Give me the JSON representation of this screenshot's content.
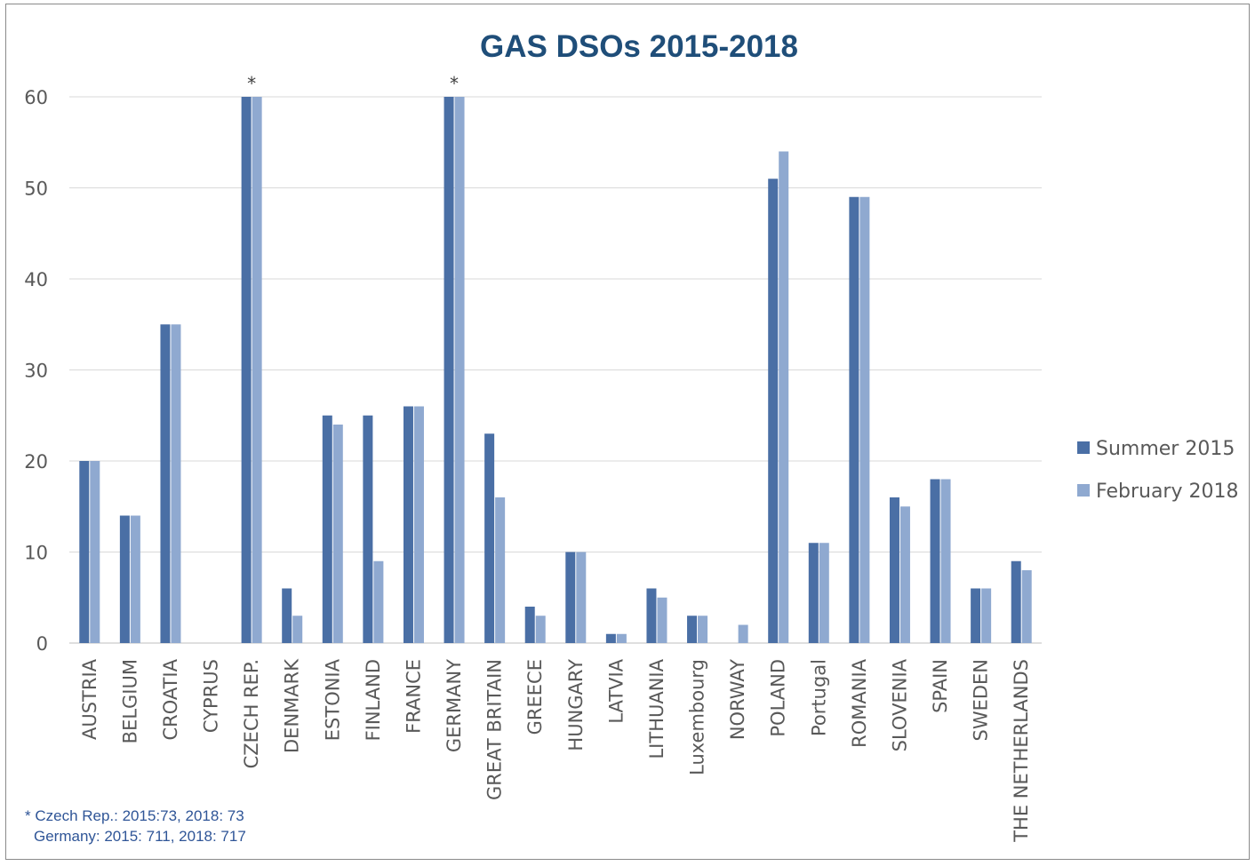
{
  "chart_data": {
    "type": "bar",
    "title": "GAS DSOs 2015-2018",
    "xlabel": "",
    "ylabel": "",
    "ylim": [
      0,
      60
    ],
    "yticks": [
      0,
      10,
      20,
      30,
      40,
      50,
      60
    ],
    "grid": true,
    "legend_position": "right",
    "categories": [
      "AUSTRIA",
      "BELGIUM",
      "CROATIA",
      "CYPRUS",
      "CZECH REP.",
      "DENMARK",
      "ESTONIA",
      "FINLAND",
      "FRANCE",
      "GERMANY",
      "GREAT BRITAIN",
      "GREECE",
      "HUNGARY",
      "LATVIA",
      "LITHUANIA",
      "Luxembourg",
      "NORWAY",
      "POLAND",
      "Portugal",
      "ROMANIA",
      "SLOVENIA",
      "SPAIN",
      "SWEDEN",
      "THE NETHERLANDS"
    ],
    "series": [
      {
        "name": "Summer 2015",
        "color": "#4a6fa5",
        "values": [
          20,
          14,
          35,
          0,
          60,
          6,
          25,
          25,
          26,
          60,
          23,
          4,
          10,
          1,
          6,
          3,
          0,
          51,
          11,
          49,
          16,
          18,
          6,
          9
        ]
      },
      {
        "name": "February 2018",
        "color": "#8fa9d0",
        "values": [
          20,
          14,
          35,
          0,
          60,
          3,
          24,
          9,
          26,
          60,
          16,
          3,
          10,
          1,
          5,
          3,
          2,
          54,
          11,
          49,
          15,
          18,
          6,
          8
        ]
      }
    ],
    "annotations": [
      {
        "category": "CZECH REP.",
        "text": "*"
      },
      {
        "category": "GERMANY",
        "text": "*"
      }
    ]
  },
  "footnote": {
    "line1": "* Czech Rep.: 2015:73, 2018: 73",
    "line2": "Germany: 2015: 711, 2018: 717"
  },
  "colors": {
    "title": "#1f4e79",
    "axis_text": "#595959",
    "grid": "#d9d9d9",
    "footnote": "#2f5597"
  }
}
